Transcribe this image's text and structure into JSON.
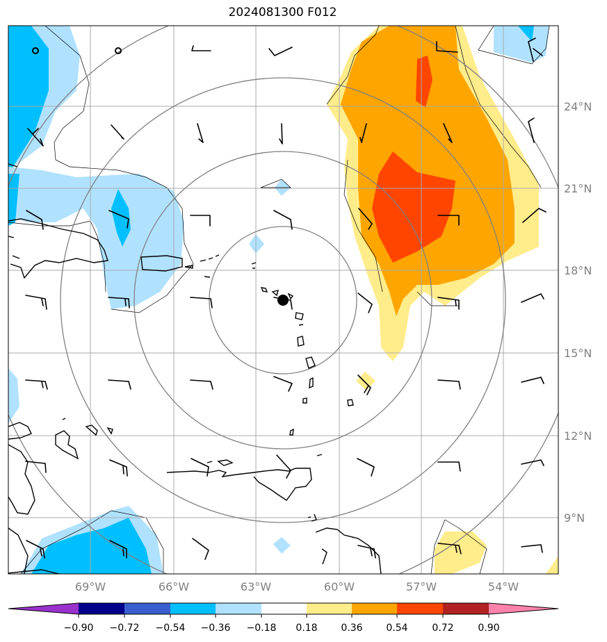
{
  "title": "2024081300 F012",
  "colors": {
    "c_m090": "#9932cc",
    "c_m072": "#00008b",
    "c_m054": "#3a5fcd",
    "c_m036": "#00bfff",
    "c_m018": "#b0e2ff",
    "c_low": "#87cefa",
    "c_mid": "#ffffff",
    "c_p018": "#ffec8b",
    "c_p036": "#ffa500",
    "c_p054": "#ff4500",
    "c_p072": "#b22222",
    "c_p090": "#ff82ab",
    "grid": "#a9a9a9",
    "rings": "#808080",
    "coast": "#000000",
    "tick_label": "#808080"
  },
  "map": {
    "lon_labels": [
      "69°W",
      "66°W",
      "63°W",
      "60°W",
      "57°W",
      "54°W"
    ],
    "lat_labels": [
      "24°N",
      "21°N",
      "18°N",
      "15°N",
      "12°N",
      "9°N"
    ],
    "center_marker": "storm-center-dot"
  },
  "colorbar": {
    "labels": [
      "−0.90",
      "−0.72",
      "−0.54",
      "−0.36",
      "−0.18",
      "0.18",
      "0.36",
      "0.54",
      "0.72",
      "0.90"
    ]
  }
}
